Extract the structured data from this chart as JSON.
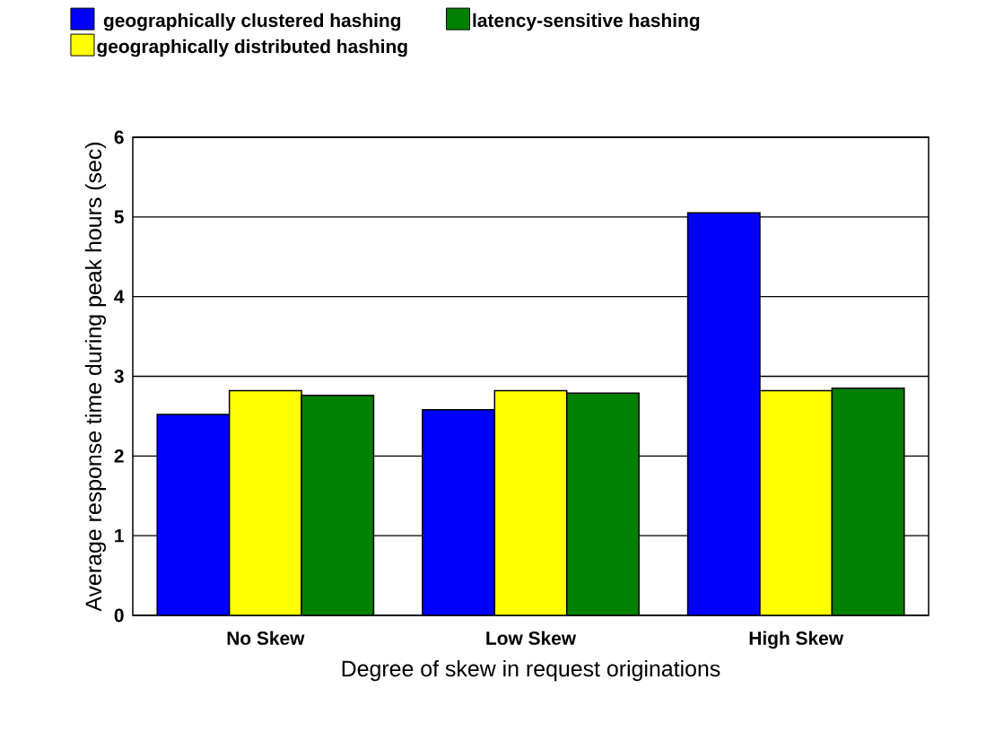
{
  "chart_data": {
    "type": "bar",
    "xlabel": "Degree of skew in request originations",
    "ylabel": "Average response time during peak hours (sec)",
    "categories": [
      "No Skew",
      "Low Skew",
      "High Skew"
    ],
    "series": [
      {
        "name": "geographically clustered hashing",
        "color": "#0000ff",
        "values": [
          2.52,
          2.58,
          5.05
        ]
      },
      {
        "name": "geographically distributed hashing",
        "color": "#ffff00",
        "values": [
          2.82,
          2.82,
          2.82
        ]
      },
      {
        "name": "latency-sensitive hashing",
        "color": "#008000",
        "values": [
          2.76,
          2.79,
          2.85
        ]
      }
    ],
    "ylim": [
      0,
      6
    ],
    "yticks": [
      0,
      1,
      2,
      3,
      4,
      5,
      6
    ],
    "grid": "y",
    "legend": "top"
  }
}
